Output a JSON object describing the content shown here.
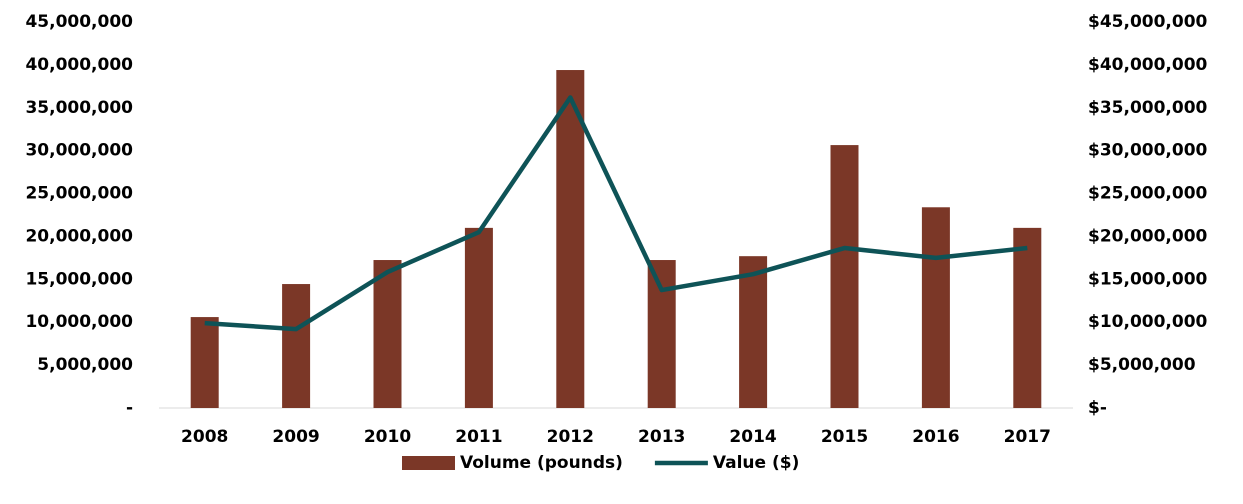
{
  "chart_data": {
    "type": "bar_line",
    "categories": [
      "2008",
      "2009",
      "2010",
      "2011",
      "2012",
      "2013",
      "2014",
      "2015",
      "2016",
      "2017"
    ],
    "series": [
      {
        "name": "Volume (pounds)",
        "type": "bar",
        "color": "#7b3727",
        "values": [
          10600000,
          14450000,
          17250000,
          21000000,
          39400000,
          17250000,
          17700000,
          30650000,
          23400000,
          21000000
        ]
      },
      {
        "name": "Value ($)",
        "type": "line",
        "axis": "y2",
        "color": "#0e5357",
        "values": [
          9900000,
          9200000,
          15850000,
          20500000,
          36200000,
          13750000,
          15600000,
          18650000,
          17500000,
          18650000
        ]
      }
    ],
    "ylim": [
      0,
      45000000
    ],
    "yticks": [
      {
        "value": 0,
        "label": "-"
      },
      {
        "value": 5000000,
        "label": "5,000,000"
      },
      {
        "value": 10000000,
        "label": "10,000,000"
      },
      {
        "value": 15000000,
        "label": "15,000,000"
      },
      {
        "value": 20000000,
        "label": "20,000,000"
      },
      {
        "value": 25000000,
        "label": "25,000,000"
      },
      {
        "value": 30000000,
        "label": "30,000,000"
      },
      {
        "value": 35000000,
        "label": "35,000,000"
      },
      {
        "value": 40000000,
        "label": "40,000,000"
      },
      {
        "value": 45000000,
        "label": "45,000,000"
      }
    ],
    "y2lim": [
      0,
      45000000
    ],
    "y2ticks": [
      {
        "value": 0,
        "label": "$-"
      },
      {
        "value": 5000000,
        "label": "$5,000,000"
      },
      {
        "value": 10000000,
        "label": "$10,000,000"
      },
      {
        "value": 15000000,
        "label": "$15,000,000"
      },
      {
        "value": 20000000,
        "label": "$20,000,000"
      },
      {
        "value": 25000000,
        "label": "$25,000,000"
      },
      {
        "value": 30000000,
        "label": "$30,000,000"
      },
      {
        "value": 35000000,
        "label": "$35,000,000"
      },
      {
        "value": 40000000,
        "label": "$40,000,000"
      },
      {
        "value": 45000000,
        "label": "$45,000,000"
      }
    ],
    "legend": "bottom"
  }
}
